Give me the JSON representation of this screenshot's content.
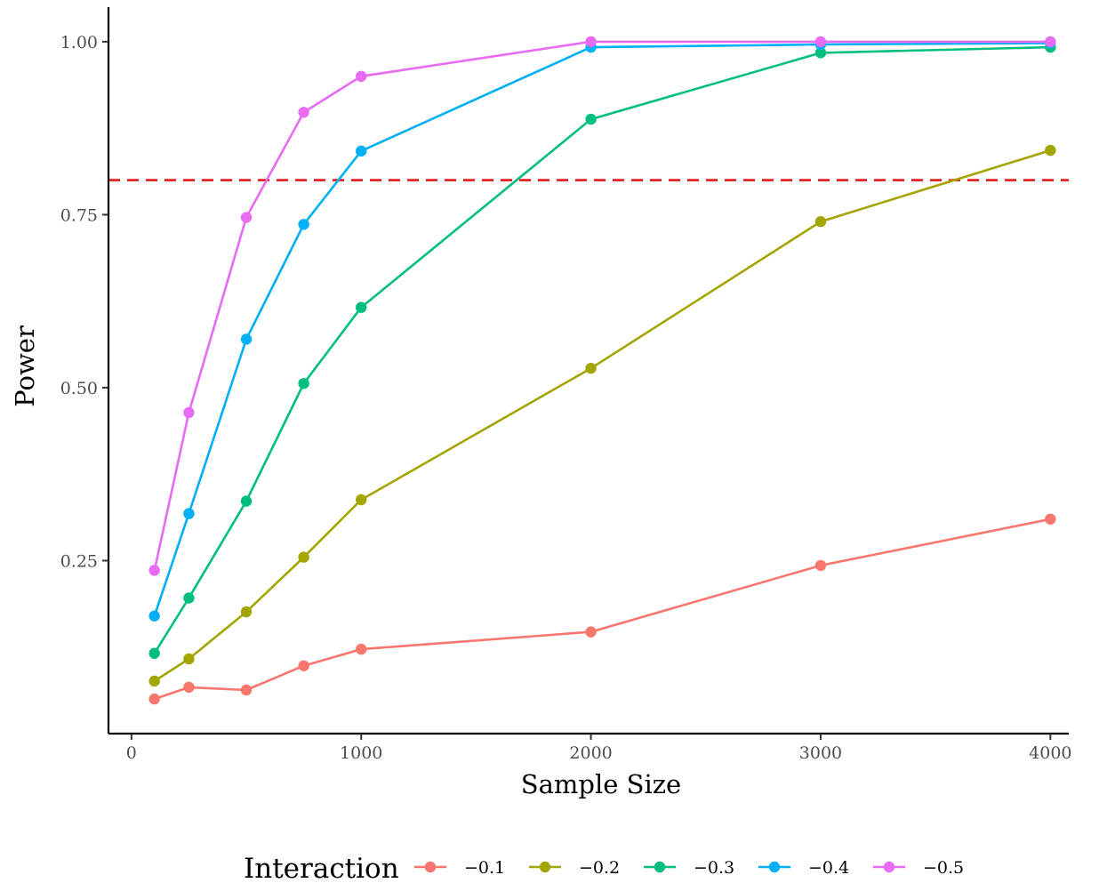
{
  "chart_data": {
    "type": "line",
    "title": "",
    "xlabel": "Sample Size",
    "ylabel": "Power",
    "xlim": [
      -100,
      4080
    ],
    "ylim": [
      0.0,
      1.05
    ],
    "x_ticks": [
      0,
      1000,
      2000,
      3000,
      4000
    ],
    "x_tick_labels": [
      "0",
      "1000",
      "2000",
      "3000",
      "4000"
    ],
    "y_ticks": [
      0.25,
      0.5,
      0.75,
      1.0
    ],
    "y_tick_labels": [
      "0.25",
      "0.50",
      "0.75",
      "1.00"
    ],
    "reference_line": {
      "y": 0.8,
      "style": "dashed",
      "color": "#e31a1c"
    },
    "grid": false,
    "legend": {
      "title": "Interaction",
      "position": "bottom"
    },
    "x": [
      100,
      250,
      500,
      750,
      1000,
      2000,
      3000,
      4000
    ],
    "series": [
      {
        "name": "−0.1",
        "color": "#f8766d",
        "values": [
          0.05,
          0.067,
          0.063,
          0.098,
          0.122,
          0.147,
          0.243,
          0.31
        ]
      },
      {
        "name": "−0.2",
        "color": "#a3a500",
        "values": [
          0.076,
          0.108,
          0.176,
          0.255,
          0.338,
          0.528,
          0.74,
          0.843
        ]
      },
      {
        "name": "−0.3",
        "color": "#00bf7d",
        "values": [
          0.116,
          0.196,
          0.336,
          0.506,
          0.616,
          0.888,
          0.984,
          0.992
        ]
      },
      {
        "name": "−0.4",
        "color": "#00b0f6",
        "values": [
          0.17,
          0.318,
          0.57,
          0.736,
          0.842,
          0.992,
          0.996,
          0.998
        ]
      },
      {
        "name": "−0.5",
        "color": "#e76bf3",
        "values": [
          0.236,
          0.464,
          0.746,
          0.898,
          0.95,
          1.0,
          1.0,
          1.0
        ]
      }
    ]
  }
}
